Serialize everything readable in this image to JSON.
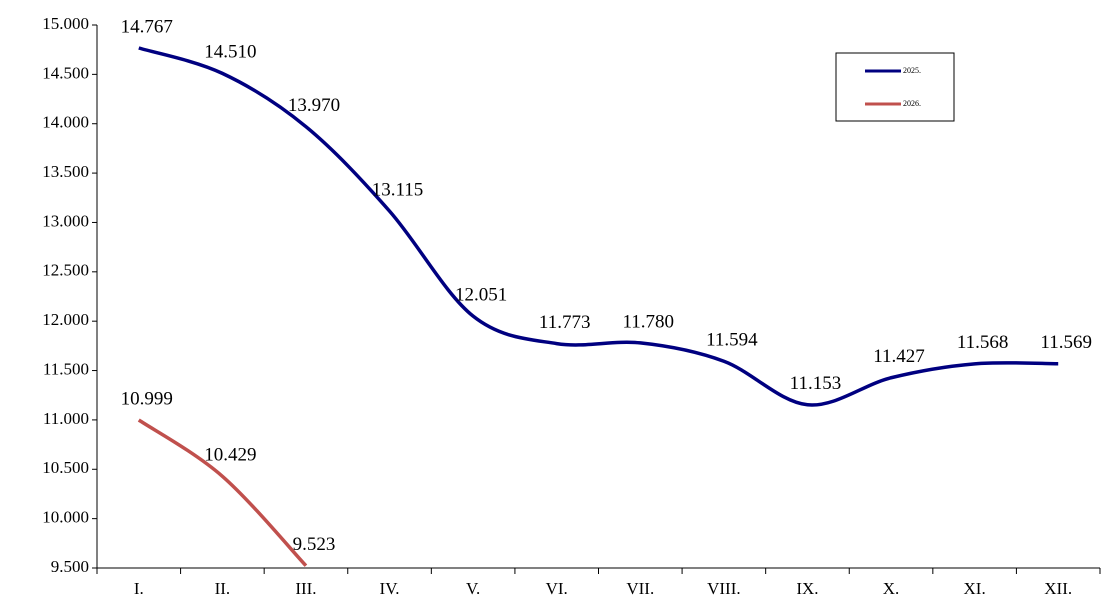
{
  "chart_data": {
    "type": "line",
    "categories": [
      "I.",
      "II.",
      "III.",
      "IV.",
      "V.",
      "VI.",
      "VII.",
      "VIII.",
      "IX.",
      "X.",
      "XI.",
      "XII."
    ],
    "series": [
      {
        "name": "2025.",
        "color": "#000080",
        "values": [
          14767,
          14510,
          13970,
          13115,
          12051,
          11773,
          11780,
          11594,
          11153,
          11427,
          11568,
          11569
        ],
        "value_labels": [
          "14.767",
          "14.510",
          "13.970",
          "13.115",
          "12.051",
          "11.773",
          "11.780",
          "11.594",
          "11.153",
          "11.427",
          "11.568",
          "11.569"
        ]
      },
      {
        "name": "2026.",
        "color": "#c0504d",
        "values": [
          10999,
          10429,
          9523,
          null,
          null,
          null,
          null,
          null,
          null,
          null,
          null,
          null
        ],
        "value_labels": [
          "10.999",
          "10.429",
          "9.523",
          null,
          null,
          null,
          null,
          null,
          null,
          null,
          null,
          null
        ]
      }
    ],
    "ylim": [
      9500,
      15000
    ],
    "yticks": [
      {
        "value": 9500,
        "label": "9.500"
      },
      {
        "value": 10000,
        "label": "10.000"
      },
      {
        "value": 10500,
        "label": "10.500"
      },
      {
        "value": 11000,
        "label": "11.000"
      },
      {
        "value": 11500,
        "label": "11.500"
      },
      {
        "value": 12000,
        "label": "12.000"
      },
      {
        "value": 12500,
        "label": "12.500"
      },
      {
        "value": 13000,
        "label": "13.000"
      },
      {
        "value": 13500,
        "label": "13.500"
      },
      {
        "value": 14000,
        "label": "14.000"
      },
      {
        "value": 14500,
        "label": "14.500"
      },
      {
        "value": 15000,
        "label": "15.000"
      }
    ],
    "legend": "top-right",
    "smooth": true
  }
}
